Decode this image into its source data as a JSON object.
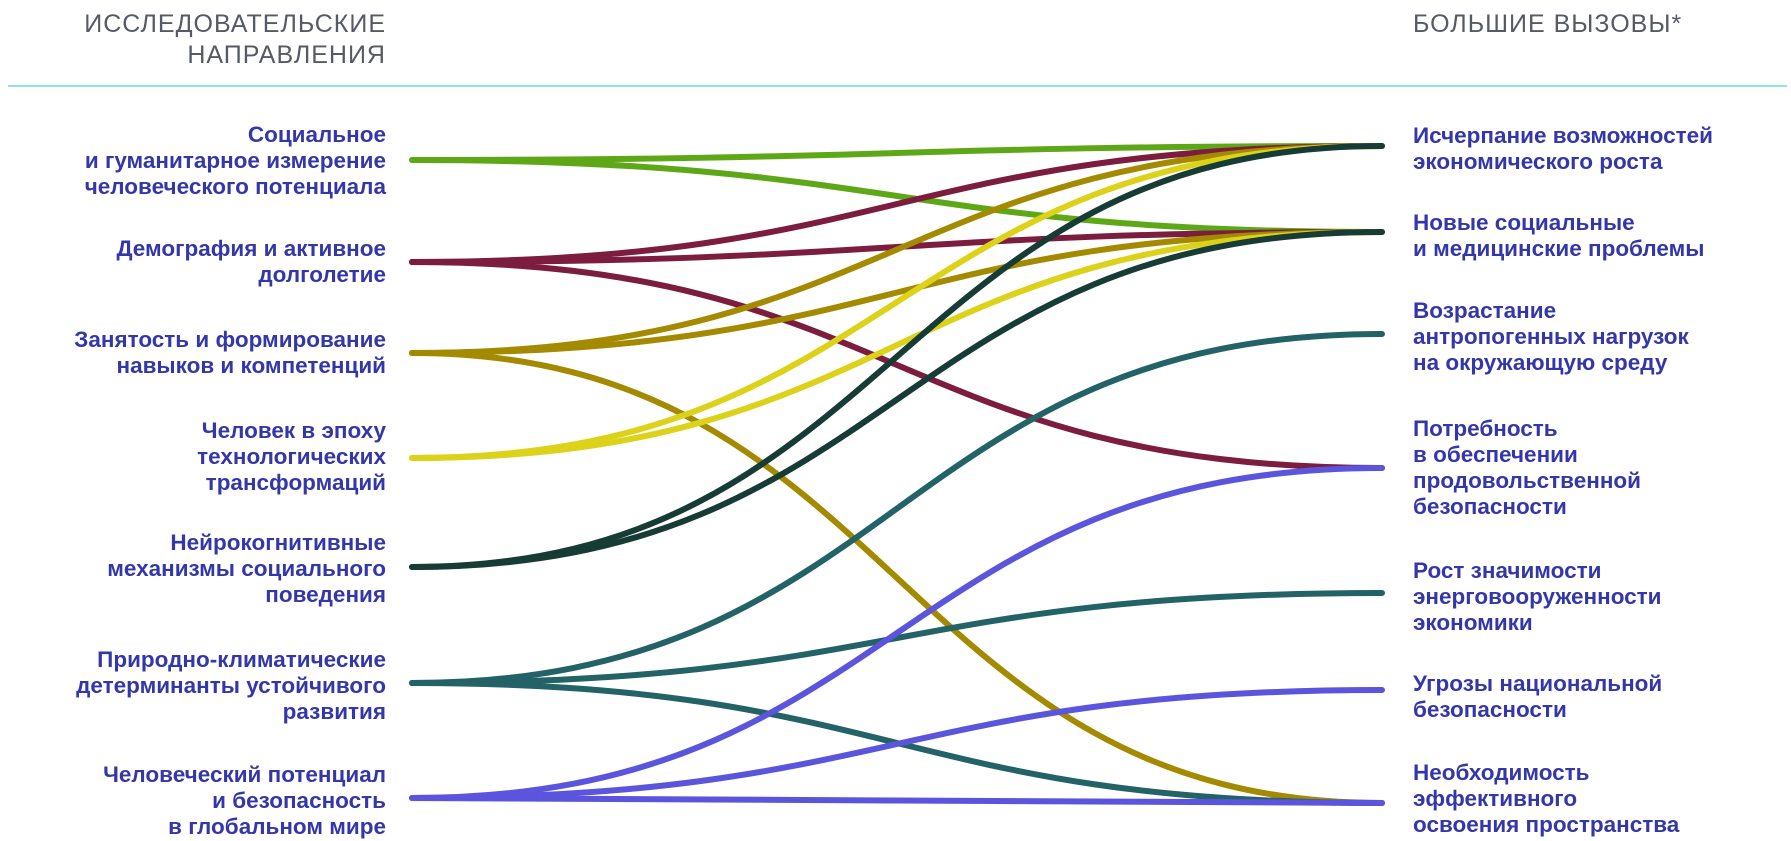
{
  "headers": {
    "left": "ИССЛЕДОВАТЕЛЬСКИЕ\nНАПРАВЛЕНИЯ",
    "right": "БОЛЬШИЕ ВЫЗОВЫ*"
  },
  "directions": [
    {
      "id": "d1",
      "label": "Социальное\nи гуманитарное измерение\nчеловеческого потенциала",
      "color": "#5ea818"
    },
    {
      "id": "d2",
      "label": "Демография и активное\nдолголетие",
      "color": "#7c1c3f"
    },
    {
      "id": "d3",
      "label": "Занятость и формирование\nнавыков и компетенций",
      "color": "#a48a00"
    },
    {
      "id": "d4",
      "label": "Человек в эпоху\nтехнологических\nтрансформаций",
      "color": "#ddd21a"
    },
    {
      "id": "d5",
      "label": "Нейрокогнитивные\nмеханизмы  социального\nповедения",
      "color": "#173b35"
    },
    {
      "id": "d6",
      "label": "Природно-климатические\nдетерминанты устойчивого\nразвития",
      "color": "#236266"
    },
    {
      "id": "d7",
      "label": "Человеческий потенциал\nи безопасность\nв глобальном мире",
      "color": "#5a55dc"
    }
  ],
  "challenges": [
    {
      "id": "c1",
      "label": "Исчерпание возможностей\nэкономического роста"
    },
    {
      "id": "c2",
      "label": "Новые социальные\nи медицинские проблемы"
    },
    {
      "id": "c3",
      "label": "Возрастание\nантропогенных нагрузок\nна окружающую среду"
    },
    {
      "id": "c4",
      "label": "Потребность\nв обеспечении\nпродовольственной\nбезопасности"
    },
    {
      "id": "c5",
      "label": "Рост значимости\nэнерговооруженности\nэкономики"
    },
    {
      "id": "c6",
      "label": "Угрозы национальной\nбезопасности"
    },
    {
      "id": "c7",
      "label": "Необходимость\nэффективного\nосвоения пространства"
    }
  ],
  "links": [
    {
      "from": "d1",
      "to": "c1"
    },
    {
      "from": "d1",
      "to": "c2"
    },
    {
      "from": "d2",
      "to": "c1"
    },
    {
      "from": "d2",
      "to": "c2"
    },
    {
      "from": "d2",
      "to": "c4"
    },
    {
      "from": "d3",
      "to": "c1"
    },
    {
      "from": "d3",
      "to": "c2"
    },
    {
      "from": "d3",
      "to": "c7"
    },
    {
      "from": "d4",
      "to": "c1"
    },
    {
      "from": "d4",
      "to": "c2"
    },
    {
      "from": "d5",
      "to": "c1"
    },
    {
      "from": "d5",
      "to": "c2"
    },
    {
      "from": "d6",
      "to": "c3"
    },
    {
      "from": "d6",
      "to": "c5"
    },
    {
      "from": "d6",
      "to": "c7"
    },
    {
      "from": "d7",
      "to": "c4"
    },
    {
      "from": "d7",
      "to": "c6"
    },
    {
      "from": "d7",
      "to": "c7"
    }
  ]
}
